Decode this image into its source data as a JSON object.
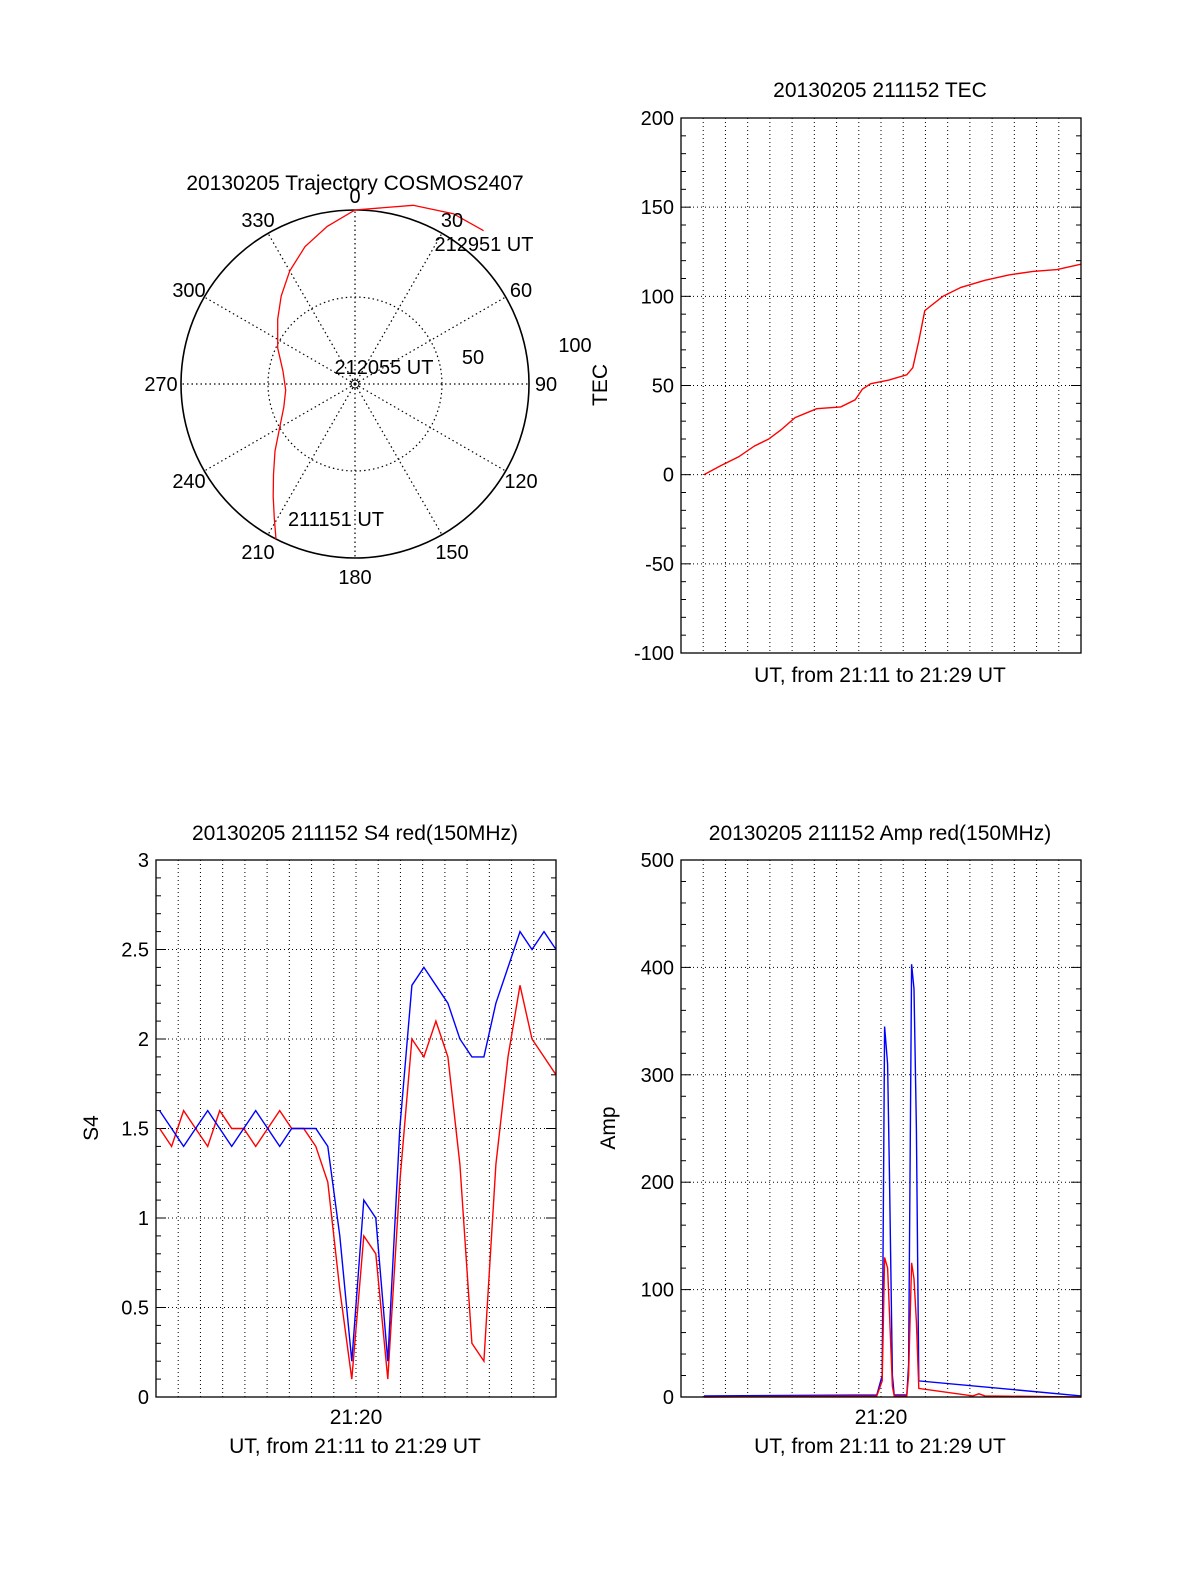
{
  "colors": {
    "red_series": "#ff0000",
    "blue_series": "#0000ff",
    "axis": "#000000",
    "grid": "#000000"
  },
  "chart_data": [
    {
      "id": "trajectory",
      "type": "polar",
      "title": "20130205 Trajectory COSMOS2407",
      "angle_labels": [
        "0",
        "30",
        "60",
        "90",
        "120",
        "150",
        "180",
        "210",
        "240",
        "270",
        "300",
        "330"
      ],
      "radius_labels": [
        "50",
        "100"
      ],
      "rlim": [
        0,
        100
      ],
      "grid": true,
      "series": [
        {
          "color": "red",
          "points": [
            [
              207,
              100
            ],
            [
              211,
              90
            ],
            [
              216,
              80
            ],
            [
              222,
              70
            ],
            [
              230,
              60
            ],
            [
              240,
              50
            ],
            [
              252,
              43
            ],
            [
              265,
              40
            ],
            [
              280,
              42
            ],
            [
              295,
              49
            ],
            [
              310,
              58
            ],
            [
              320,
              66
            ],
            [
              330,
              75
            ],
            [
              340,
              84
            ],
            [
              350,
              92
            ],
            [
              360,
              100
            ],
            [
              378,
              108
            ],
            [
              390,
              113
            ],
            [
              400,
              115
            ]
          ]
        }
      ],
      "annotations": [
        {
          "text": "212951 UT"
        },
        {
          "text": "212055 UT"
        },
        {
          "text": "211151 UT"
        }
      ]
    },
    {
      "id": "tec",
      "type": "line",
      "title": "20130205 211152 TEC",
      "xlabel": "UT, from 21:11 to 21:29 UT",
      "ylabel": "TEC",
      "xlim": [
        21.167,
        21.5
      ],
      "ylim": [
        -100,
        200
      ],
      "yticks": [
        "200",
        "150",
        "100",
        "50",
        "0",
        "-50",
        "-100"
      ],
      "grid": true,
      "series": [
        {
          "color": "red",
          "x": [
            21.1861,
            21.2,
            21.215,
            21.228,
            21.24,
            21.25,
            21.262,
            21.28,
            21.3,
            21.312,
            21.318,
            21.325,
            21.34,
            21.355,
            21.36,
            21.365,
            21.37,
            21.385,
            21.4,
            21.42,
            21.44,
            21.46,
            21.48,
            21.5
          ],
          "y": [
            0,
            5,
            10,
            16,
            20,
            25,
            32,
            37,
            38,
            42,
            48,
            51,
            53,
            56,
            60,
            75,
            92,
            100,
            105,
            109,
            112,
            114,
            115,
            118
          ]
        }
      ]
    },
    {
      "id": "s4",
      "type": "line",
      "title": "20130205 211152 S4 red(150MHz)",
      "xlabel": "UT, from 21:11 to 21:29 UT",
      "ylabel": "S4",
      "xtick_label": "21:20",
      "xlim": [
        21.167,
        21.5
      ],
      "ylim": [
        0,
        3
      ],
      "yticks": [
        "3",
        "2.5",
        "2",
        "1.5",
        "1",
        "0.5",
        "0"
      ],
      "grid": true,
      "series": [
        {
          "color": "red",
          "x": [
            21.17,
            21.18,
            21.19,
            21.2,
            21.21,
            21.22,
            21.23,
            21.24,
            21.25,
            21.26,
            21.27,
            21.28,
            21.29,
            21.3,
            21.31,
            21.32,
            21.33,
            21.34,
            21.35,
            21.36,
            21.37,
            21.38,
            21.39,
            21.4,
            21.41,
            21.42,
            21.43,
            21.44,
            21.45,
            21.46,
            21.47,
            21.48,
            21.49,
            21.5
          ],
          "y": [
            1.5,
            1.4,
            1.6,
            1.5,
            1.4,
            1.6,
            1.5,
            1.5,
            1.4,
            1.5,
            1.6,
            1.5,
            1.5,
            1.4,
            1.2,
            0.6,
            0.1,
            0.9,
            0.8,
            0.1,
            1.2,
            2.0,
            1.9,
            2.1,
            1.9,
            1.3,
            0.3,
            0.2,
            1.3,
            1.9,
            2.3,
            2.0,
            1.9,
            1.8
          ]
        },
        {
          "color": "blue",
          "x": [
            21.17,
            21.18,
            21.19,
            21.2,
            21.21,
            21.22,
            21.23,
            21.24,
            21.25,
            21.26,
            21.27,
            21.28,
            21.29,
            21.3,
            21.31,
            21.32,
            21.33,
            21.34,
            21.35,
            21.36,
            21.37,
            21.38,
            21.39,
            21.4,
            21.41,
            21.42,
            21.43,
            21.44,
            21.45,
            21.46,
            21.47,
            21.48,
            21.49,
            21.5
          ],
          "y": [
            1.6,
            1.5,
            1.4,
            1.5,
            1.6,
            1.5,
            1.4,
            1.5,
            1.6,
            1.5,
            1.4,
            1.5,
            1.5,
            1.5,
            1.4,
            0.9,
            0.2,
            1.1,
            1.0,
            0.2,
            1.5,
            2.3,
            2.4,
            2.3,
            2.2,
            2.0,
            1.9,
            1.9,
            2.2,
            2.4,
            2.6,
            2.5,
            2.6,
            2.5
          ]
        }
      ]
    },
    {
      "id": "amp",
      "type": "line",
      "title": "20130205 211152 Amp red(150MHz)",
      "xlabel": "UT, from 21:11 to 21:29 UT",
      "ylabel": "Amp",
      "xtick_label": "21:20",
      "xlim": [
        21.167,
        21.5
      ],
      "ylim": [
        0,
        500
      ],
      "yticks": [
        "500",
        "400",
        "300",
        "200",
        "100",
        "0"
      ],
      "grid": true,
      "series": [
        {
          "color": "blue",
          "x": [
            21.1861,
            21.33,
            21.3345,
            21.3365,
            21.339,
            21.3405,
            21.343,
            21.3445,
            21.355,
            21.3565,
            21.359,
            21.361,
            21.363,
            21.365,
            21.5
          ],
          "y": [
            1,
            2,
            20,
            345,
            310,
            210,
            20,
            2,
            2,
            30,
            403,
            380,
            250,
            15,
            1
          ]
        },
        {
          "color": "red",
          "x": [
            21.1861,
            21.33,
            21.3345,
            21.3365,
            21.339,
            21.3405,
            21.343,
            21.3445,
            21.355,
            21.3565,
            21.359,
            21.361,
            21.363,
            21.365,
            21.41,
            21.415,
            21.42,
            21.5
          ],
          "y": [
            0,
            1,
            15,
            130,
            120,
            80,
            10,
            1,
            1,
            20,
            125,
            110,
            70,
            8,
            1,
            3,
            1,
            0
          ]
        }
      ]
    }
  ]
}
